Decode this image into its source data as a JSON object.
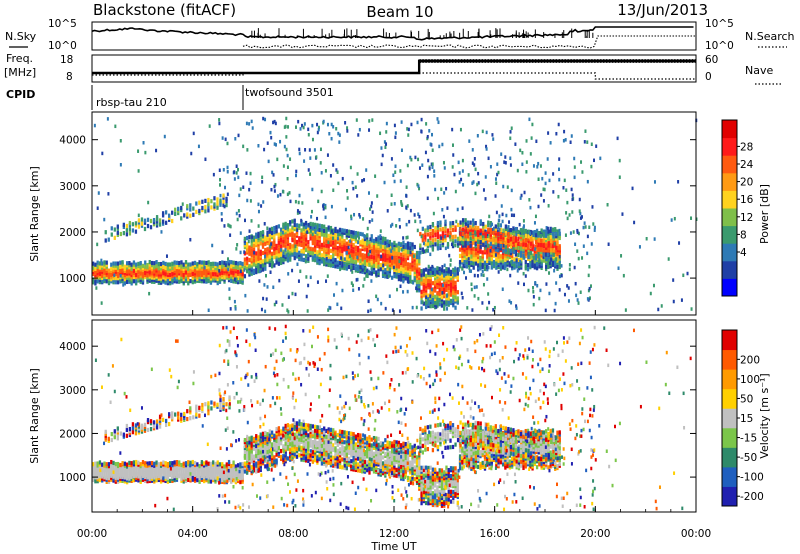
{
  "header": {
    "radar": "Blackstone (fitACF)",
    "beam": "Beam 10",
    "date": "13/Jun/2013"
  },
  "panels": {
    "noise": {
      "left_label": "N.Sky",
      "right_label": "N.Search",
      "left_ticks": [
        "10^5",
        "10^0"
      ],
      "right_ticks": [
        "10^5",
        "10^0"
      ]
    },
    "freq": {
      "left_label_1": "Freq.",
      "left_label_2": "[MHz]",
      "right_label": "Nave",
      "left_ticks": [
        "18",
        "8"
      ],
      "right_ticks": [
        "60",
        "0"
      ]
    },
    "cpid": {
      "label": "CPID",
      "segments": [
        {
          "name": "rbsp-tau 210",
          "start_hour": 0
        },
        {
          "name": "twofsound 3501",
          "start_hour": 6
        }
      ]
    }
  },
  "chart_data": [
    {
      "type": "heatmap",
      "name": "power",
      "ylabel": "Slant Range [km]",
      "xlabel": "",
      "yticks": [
        1000,
        2000,
        3000,
        4000
      ],
      "ylim": [
        200,
        4600
      ],
      "xlim": [
        0,
        24
      ],
      "colorbar": {
        "label": "Power [dB]",
        "ticks": [
          "28",
          "24",
          "20",
          "16",
          "12",
          "8",
          "4"
        ],
        "colors": [
          "#0000ff",
          "#1f3fa6",
          "#2e7ab5",
          "#3a9a6e",
          "#7fbf4a",
          "#ffd21f",
          "#ff9a14",
          "#ff5a10",
          "#ff1a1a",
          "#e00000"
        ]
      },
      "features": [
        {
          "desc": "band",
          "hours": [
            0,
            6
          ],
          "range_km": [
            1000,
            1300
          ]
        },
        {
          "desc": "band",
          "hours": [
            6,
            12.8
          ],
          "range_km": [
            1300,
            2000
          ]
        },
        {
          "desc": "band",
          "hours": [
            13,
            18.5
          ],
          "range_km": [
            1500,
            2000
          ]
        }
      ]
    },
    {
      "type": "heatmap",
      "name": "velocity",
      "ylabel": "Slant Range [km]",
      "xlabel": "Time UT",
      "yticks": [
        1000,
        2000,
        3000,
        4000
      ],
      "ylim": [
        200,
        4600
      ],
      "xlim": [
        0,
        24
      ],
      "xticks": [
        "00:00",
        "04:00",
        "08:00",
        "12:00",
        "16:00",
        "20:00",
        "00:00"
      ],
      "colorbar": {
        "label": "Velocity [m s⁻¹]",
        "ticks": [
          "200",
          "100",
          "50",
          "15",
          "-15",
          "-50",
          "-100",
          "-200"
        ],
        "colors": [
          "#2020b0",
          "#1f5fbf",
          "#2e8a6a",
          "#7bc64a",
          "#c0c0c0",
          "#ffd000",
          "#ff9a00",
          "#ff5a00",
          "#e00000"
        ]
      }
    }
  ]
}
